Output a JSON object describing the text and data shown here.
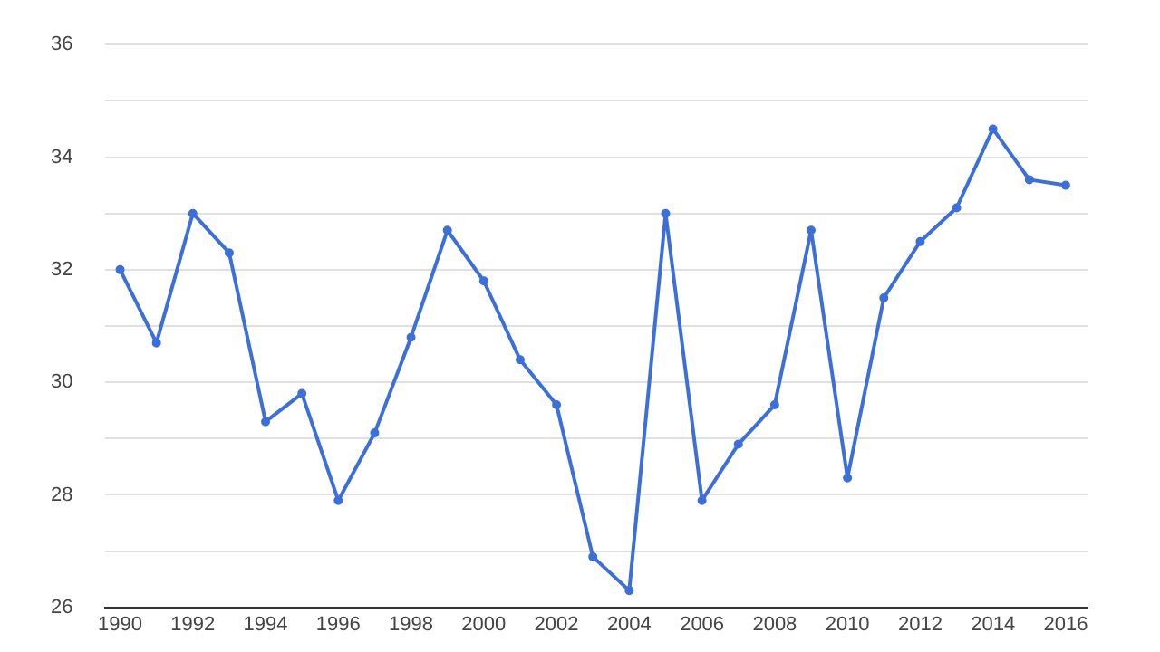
{
  "chart_data": {
    "type": "line",
    "x": [
      1990,
      1991,
      1992,
      1993,
      1994,
      1995,
      1996,
      1997,
      1998,
      1999,
      2000,
      2001,
      2002,
      2003,
      2004,
      2005,
      2006,
      2007,
      2008,
      2009,
      2010,
      2011,
      2012,
      2013,
      2014,
      2015,
      2016
    ],
    "series": [
      {
        "color": "#3d6fd8",
        "values": [
          32.0,
          30.7,
          33.0,
          32.3,
          29.3,
          29.8,
          27.9,
          29.1,
          30.8,
          32.7,
          31.8,
          30.4,
          29.6,
          26.9,
          26.3,
          33.0,
          27.9,
          28.9,
          29.6,
          32.7,
          28.3,
          31.5,
          32.5,
          33.1,
          34.5,
          33.6,
          33.5
        ]
      }
    ],
    "xlim": [
      1989.6,
      2016.6
    ],
    "xticks": [
      1990,
      1992,
      1994,
      1996,
      1998,
      2000,
      2002,
      2004,
      2006,
      2008,
      2010,
      2012,
      2014,
      2016
    ],
    "ylim": [
      26,
      36
    ],
    "yticks": [
      26,
      {
        "value": 27,
        "label": null
      },
      28,
      {
        "value": 29,
        "label": null
      },
      30,
      {
        "value": 31,
        "label": null
      },
      32,
      {
        "value": 33,
        "label": null
      },
      34,
      {
        "value": 35,
        "label": null
      },
      36
    ],
    "grid": "y",
    "legend": false,
    "marker": "circle",
    "line_style": "solid"
  }
}
